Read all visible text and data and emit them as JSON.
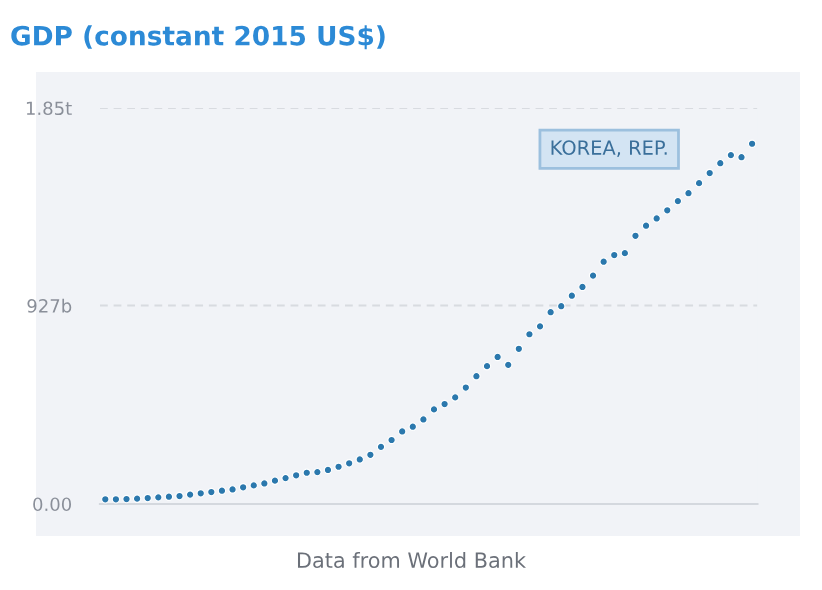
{
  "chart_data": {
    "type": "scatter",
    "title": "GDP (constant 2015 US$)",
    "categories": [
      null,
      null,
      null,
      null,
      null,
      null,
      null,
      null,
      null,
      null,
      null,
      null,
      null,
      null,
      null,
      null,
      null,
      null,
      null,
      null,
      null,
      null,
      null,
      null,
      null,
      null,
      null,
      null,
      null,
      null,
      null,
      null,
      null,
      null,
      null,
      null,
      null,
      null,
      null,
      null,
      null,
      null,
      null,
      null,
      null,
      null,
      null,
      null,
      null,
      null,
      null,
      null,
      null,
      null,
      null,
      null,
      null,
      null,
      null,
      null,
      null,
      null
    ],
    "series": [
      {
        "name": "KOREA, REP.",
        "color": "#2b78ad",
        "values": [
          22000000000.0,
          22000000000.0,
          23000000000.0,
          25000000000.0,
          28000000000.0,
          31000000000.0,
          34000000000.0,
          37000000000.0,
          44000000000.0,
          50000000000.0,
          56000000000.0,
          62000000000.0,
          68000000000.0,
          78000000000.0,
          87000000000.0,
          96000000000.0,
          109000000000.0,
          121000000000.0,
          134000000000.0,
          146000000000.0,
          149000000000.0,
          159000000000.0,
          174000000000.0,
          190000000000.0,
          208000000000.0,
          230000000000.0,
          267000000000.0,
          299000000000.0,
          339000000000.0,
          361000000000.0,
          395000000000.0,
          442000000000.0,
          467000000000.0,
          498000000000.0,
          544000000000.0,
          597000000000.0,
          644000000000.0,
          687000000000.0,
          650000000000.0,
          725000000000.0,
          793000000000.0,
          830000000000.0,
          896000000000.0,
          924000000000.0,
          973000000000.0,
          1014000000000.0,
          1067000000000.0,
          1132000000000.0,
          1163000000000.0,
          1172000000000.0,
          1253000000000.0,
          1300000000000.0,
          1334000000000.0,
          1372000000000.0,
          1415000000000.0,
          1452000000000.0,
          1499000000000.0,
          1546000000000.0,
          1592000000000.0,
          1630000000000.0,
          1620000000000.0,
          1683000000000.0
        ]
      }
    ],
    "ylim": [
      0,
      1850000000000.0
    ],
    "yticks": [
      {
        "value": 0,
        "label": "0.00"
      },
      {
        "value": 927000000000.0,
        "label": "927b"
      },
      {
        "value": 1850000000000.0,
        "label": "1.85t"
      }
    ],
    "grid": "y",
    "marker": "circle",
    "annotations": [
      "Data from World Bank"
    ]
  }
}
